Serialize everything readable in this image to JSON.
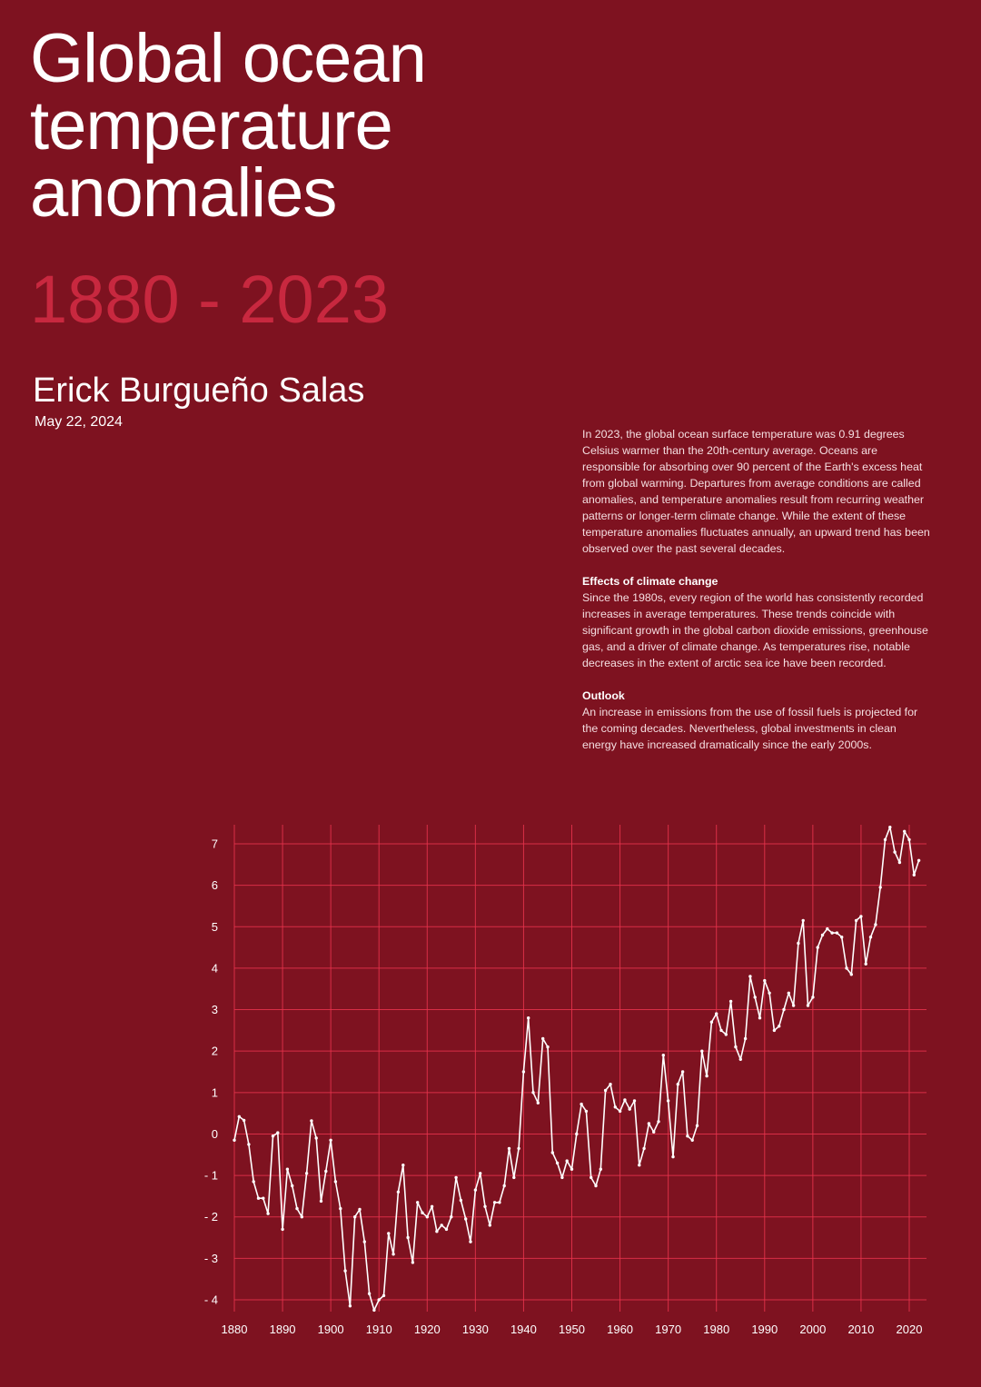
{
  "header": {
    "title_lines": [
      "Global ocean",
      "temperature",
      "anomalies"
    ],
    "years": "1880 - 2023",
    "author": "Erick Burgueño Salas",
    "date": "May 22, 2024"
  },
  "text": {
    "intro": "In 2023, the global ocean surface temperature was 0.91 degrees Celsius warmer than the 20th-century average. Oceans are responsible for absorbing over 90 percent of the Earth's excess heat from global warming. Departures from average conditions are called anomalies, and temperature anomalies result from recurring weather patterns or longer-term climate change. While the extent of these temperature anomalies fluctuates annually, an upward trend has been observed over the past several decades.",
    "section1_title": "Effects of climate change",
    "section1_body": "Since the 1980s, every region of the world has consistently recorded increases in average temperatures. These trends coincide with significant growth in the global carbon dioxide emissions, greenhouse gas, and a driver of climate change. As temperatures rise, notable decreases in the extent of arctic sea ice have been recorded.",
    "section2_title": "Outlook",
    "section2_body": "An increase in emissions from the use of fossil fuels is projected for the coming decades. Nevertheless, global investments in clean energy have increased dramatically since the early 2000s."
  },
  "colors": {
    "background": "#7e1220",
    "grid": "#e8334d",
    "line": "#ffffff",
    "accent": "#c8283f"
  },
  "chart_data": {
    "type": "line",
    "title": "",
    "xlabel": "",
    "ylabel": "",
    "xlim": [
      1880,
      2023
    ],
    "ylim": [
      -4,
      7
    ],
    "grid": true,
    "x_ticks": [
      1880,
      1890,
      1900,
      1910,
      1920,
      1930,
      1940,
      1950,
      1960,
      1970,
      1980,
      1990,
      2000,
      2010,
      2020
    ],
    "y_ticks": [
      -4,
      -3,
      -2,
      -1,
      0,
      1,
      2,
      3,
      4,
      5,
      6,
      7
    ],
    "series": [
      {
        "x_start": 1880,
        "values": [
          -0.15,
          0.42,
          0.33,
          -0.25,
          -1.15,
          -1.55,
          -1.55,
          -1.92,
          -0.05,
          0.03,
          -2.3,
          -0.85,
          -1.25,
          -1.8,
          -2.0,
          -0.95,
          0.32,
          -0.1,
          -1.62,
          -0.9,
          -0.15,
          -1.15,
          -1.8,
          -3.3,
          -4.15,
          -2.0,
          -1.82,
          -2.6,
          -3.85,
          -4.25,
          -4.0,
          -3.9,
          -2.4,
          -2.9,
          -1.4,
          -0.75,
          -2.5,
          -3.1,
          -1.65,
          -1.9,
          -2.0,
          -1.75,
          -2.35,
          -2.2,
          -2.3,
          -2.0,
          -1.05,
          -1.6,
          -2.05,
          -2.6,
          -1.35,
          -0.95,
          -1.75,
          -2.2,
          -1.65,
          -1.65,
          -1.25,
          -0.35,
          -1.05,
          -0.35,
          1.5,
          2.8,
          1.0,
          0.75,
          2.3,
          2.1,
          -0.45,
          -0.7,
          -1.05,
          -0.65,
          -0.85,
          0.0,
          0.72,
          0.55,
          -1.05,
          -1.25,
          -0.85,
          1.05,
          1.2,
          0.65,
          0.55,
          0.82,
          0.6,
          0.8,
          -0.75,
          -0.35,
          0.25,
          0.05,
          0.3,
          1.9,
          0.8,
          -0.55,
          1.2,
          1.5,
          -0.05,
          -0.15,
          0.2,
          2.0,
          1.4,
          2.7,
          2.9,
          2.5,
          2.4,
          3.2,
          2.1,
          1.8,
          2.3,
          3.8,
          3.3,
          2.8,
          3.7,
          3.4,
          2.5,
          2.6,
          3.0,
          3.4,
          3.1,
          4.6,
          5.15,
          3.1,
          3.3,
          4.5,
          4.8,
          4.95,
          4.85,
          4.85,
          4.75,
          4.0,
          3.85,
          5.15,
          5.25,
          4.1,
          4.75,
          5.05,
          5.95,
          7.1,
          7.4,
          6.8,
          6.55,
          7.3,
          7.1,
          6.25,
          6.6
        ]
      }
    ]
  }
}
